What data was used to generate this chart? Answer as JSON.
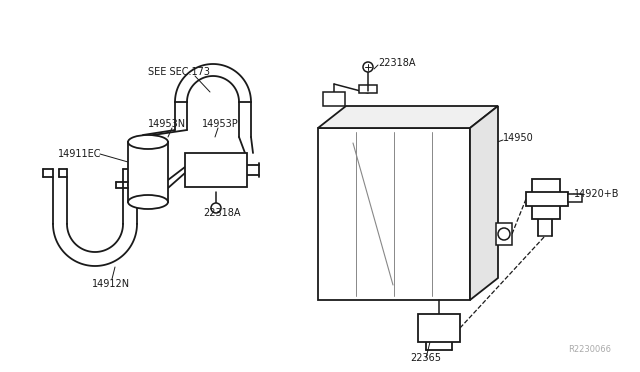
{
  "bg_color": "#ffffff",
  "line_color": "#1a1a1a",
  "label_color": "#1a1a1a",
  "fig_width": 6.4,
  "fig_height": 3.72,
  "dpi": 100,
  "ref_code": "R2230066",
  "labels": {
    "see_sec": "SEE SEC.173",
    "14953N": "14953N",
    "14953P": "14953P",
    "14911EC": "14911EC",
    "14912N": "14912N",
    "22318A_top": "22318A",
    "22318A_bot": "22318A",
    "14950": "14950",
    "22365": "22365",
    "14920B": "14920+B"
  }
}
